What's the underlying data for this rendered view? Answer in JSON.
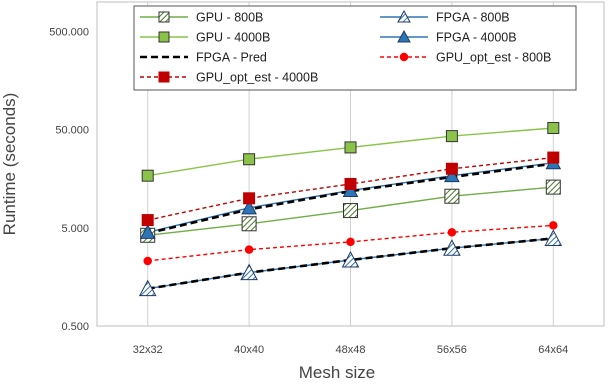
{
  "chart_data": {
    "type": "line",
    "title": "",
    "xlabel": "Mesh size",
    "ylabel": "Runtime (seconds)",
    "yscale": "log",
    "ylim": [
      0.5,
      1000
    ],
    "yticks": [
      0.5,
      5,
      50,
      500
    ],
    "ytick_labels": [
      "0.500",
      "5.000",
      "50.000",
      "500.000"
    ],
    "grid": "vertical",
    "legend_position": "top",
    "categories": [
      "32x32",
      "40x40",
      "48x48",
      "56x56",
      "64x64"
    ],
    "series": [
      {
        "name": "GPU - 800B",
        "values": [
          4.2,
          5.5,
          7.5,
          10.5,
          13.0
        ],
        "color": "#70ad47",
        "marker": "hatched-square",
        "dash": "solid"
      },
      {
        "name": "FPGA - 800B",
        "values": [
          1.2,
          1.75,
          2.35,
          3.1,
          3.9
        ],
        "color": "#2e75b6",
        "marker": "hatched-triangle",
        "dash": "solid"
      },
      {
        "name": "GPU - 4000B",
        "values": [
          17.0,
          25.0,
          33.0,
          43.0,
          52.0
        ],
        "color": "#8bc34a",
        "marker": "square",
        "dash": "solid"
      },
      {
        "name": "FPGA - 4000B",
        "values": [
          4.5,
          8.0,
          12.0,
          17.0,
          23.0
        ],
        "color": "#2e75b6",
        "marker": "triangle",
        "dash": "solid"
      },
      {
        "name": "FPGA - Pred",
        "values": [
          4.4,
          7.7,
          11.8,
          16.5,
          22.5
        ],
        "color": "#000000",
        "marker": "none",
        "dash": "dashed"
      },
      {
        "name": "GPU_opt_est - 800B",
        "values": [
          2.3,
          3.0,
          3.6,
          4.5,
          5.3
        ],
        "color": "#ff0000",
        "marker": "circle",
        "dash": "dashed"
      },
      {
        "name": "GPU_opt_est - 4000B",
        "values": [
          6.0,
          10.0,
          14.0,
          20.0,
          26.0
        ],
        "color": "#c00000",
        "marker": "square",
        "dash": "dashed"
      },
      {
        "name": "",
        "values": [
          1.2,
          1.75,
          2.35,
          3.1,
          3.9
        ],
        "color": "#000000",
        "marker": "none",
        "dash": "dashed"
      }
    ]
  }
}
